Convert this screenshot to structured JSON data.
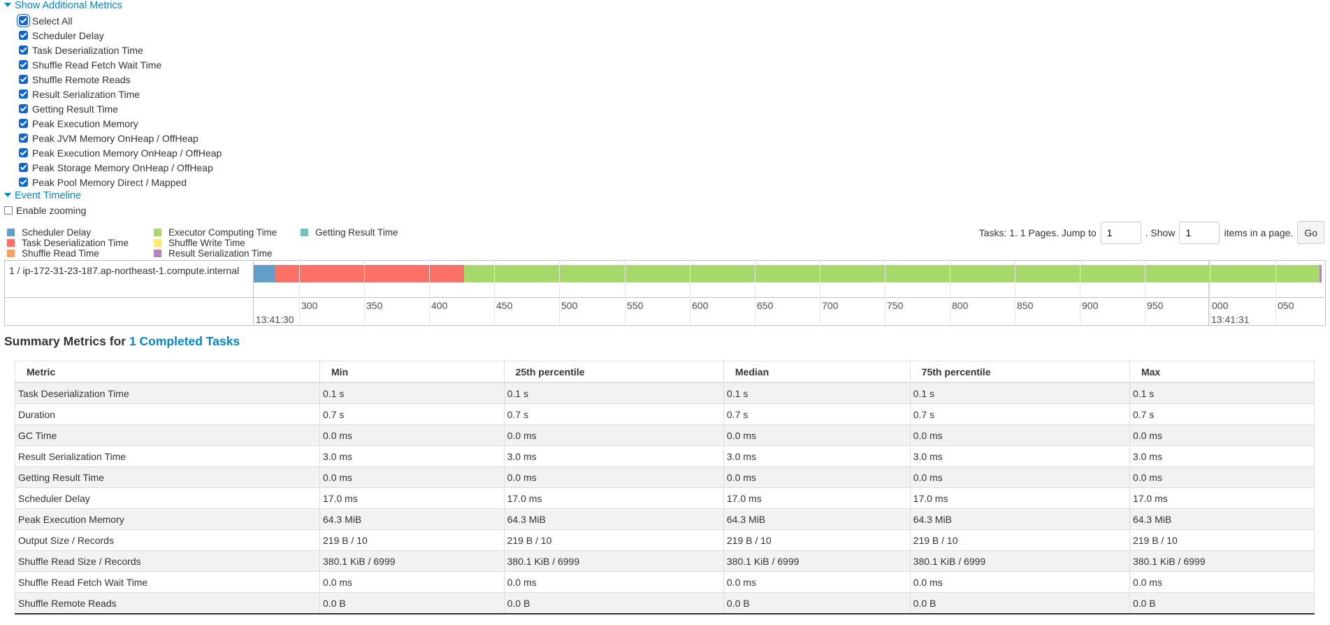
{
  "additional_metrics": {
    "toggle_label": "Show Additional Metrics",
    "items": [
      {
        "label": "Select All"
      },
      {
        "label": "Scheduler Delay"
      },
      {
        "label": "Task Deserialization Time"
      },
      {
        "label": "Shuffle Read Fetch Wait Time"
      },
      {
        "label": "Shuffle Remote Reads"
      },
      {
        "label": "Result Serialization Time"
      },
      {
        "label": "Getting Result Time"
      },
      {
        "label": "Peak Execution Memory"
      },
      {
        "label": "Peak JVM Memory OnHeap / OffHeap"
      },
      {
        "label": "Peak Execution Memory OnHeap / OffHeap"
      },
      {
        "label": "Peak Storage Memory OnHeap / OffHeap"
      },
      {
        "label": "Peak Pool Memory Direct / Mapped"
      }
    ]
  },
  "event_timeline": {
    "toggle_label": "Event Timeline",
    "enable_zooming": "Enable zooming",
    "legend": [
      {
        "label": "Scheduler Delay",
        "color": "#5f9fc9"
      },
      {
        "label": "Task Deserialization Time",
        "color": "#fd7066"
      },
      {
        "label": "Shuffle Read Time",
        "color": "#f8a15e"
      },
      {
        "label": "Executor Computing Time",
        "color": "#a6d96a"
      },
      {
        "label": "Shuffle Write Time",
        "color": "#ffe871"
      },
      {
        "label": "Result Serialization Time",
        "color": "#b584bf"
      },
      {
        "label": "Getting Result Time",
        "color": "#72c3b9"
      }
    ],
    "pager": {
      "prefix": "Tasks: 1. 1 Pages. Jump to",
      "jump_value": "1",
      "show_label": ". Show",
      "show_value": "1",
      "suffix": "items in a page.",
      "go_label": "Go"
    },
    "task_label": "1 / ip-172-31-23-187.ap-northeast-1.compute.internal",
    "axis_labels": [
      "300",
      "350",
      "400",
      "450",
      "500",
      "550",
      "600",
      "650",
      "700",
      "750",
      "800",
      "850",
      "900",
      "950",
      "000",
      "050"
    ],
    "major_labels": [
      "13:41:30",
      "13:41:31"
    ]
  },
  "summary": {
    "title_prefix": "Summary Metrics for ",
    "title_link": "1 Completed Tasks",
    "headers": [
      "Metric",
      "Min",
      "25th percentile",
      "Median",
      "75th percentile",
      "Max"
    ],
    "rows": [
      [
        "Task Deserialization Time",
        "0.1 s",
        "0.1 s",
        "0.1 s",
        "0.1 s",
        "0.1 s"
      ],
      [
        "Duration",
        "0.7 s",
        "0.7 s",
        "0.7 s",
        "0.7 s",
        "0.7 s"
      ],
      [
        "GC Time",
        "0.0 ms",
        "0.0 ms",
        "0.0 ms",
        "0.0 ms",
        "0.0 ms"
      ],
      [
        "Result Serialization Time",
        "3.0 ms",
        "3.0 ms",
        "3.0 ms",
        "3.0 ms",
        "3.0 ms"
      ],
      [
        "Getting Result Time",
        "0.0 ms",
        "0.0 ms",
        "0.0 ms",
        "0.0 ms",
        "0.0 ms"
      ],
      [
        "Scheduler Delay",
        "17.0 ms",
        "17.0 ms",
        "17.0 ms",
        "17.0 ms",
        "17.0 ms"
      ],
      [
        "Peak Execution Memory",
        "64.3 MiB",
        "64.3 MiB",
        "64.3 MiB",
        "64.3 MiB",
        "64.3 MiB"
      ],
      [
        "Output Size / Records",
        "219 B / 10",
        "219 B / 10",
        "219 B / 10",
        "219 B / 10",
        "219 B / 10"
      ],
      [
        "Shuffle Read Size / Records",
        "380.1 KiB / 6999",
        "380.1 KiB / 6999",
        "380.1 KiB / 6999",
        "380.1 KiB / 6999",
        "380.1 KiB / 6999"
      ],
      [
        "Shuffle Read Fetch Wait Time",
        "0.0 ms",
        "0.0 ms",
        "0.0 ms",
        "0.0 ms",
        "0.0 ms"
      ],
      [
        "Shuffle Remote Reads",
        "0.0 B",
        "0.0 B",
        "0.0 B",
        "0.0 B",
        "0.0 B"
      ]
    ]
  }
}
